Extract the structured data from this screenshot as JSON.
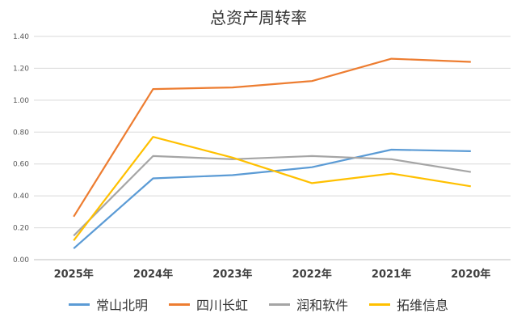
{
  "chart_data": {
    "type": "line",
    "title": "总资产周转率",
    "categories": [
      "2025年",
      "2024年",
      "2023年",
      "2022年",
      "2021年",
      "2020年"
    ],
    "ylim": [
      0,
      1.4
    ],
    "yticks": [
      "0.00",
      "0.20",
      "0.40",
      "0.60",
      "0.80",
      "1.00",
      "1.20",
      "1.40"
    ],
    "grid": true,
    "legend_position": "bottom",
    "series": [
      {
        "name": "常山北明",
        "color": "#5B9BD5",
        "values": [
          0.07,
          0.51,
          0.53,
          0.58,
          0.69,
          0.68
        ]
      },
      {
        "name": "四川长虹",
        "color": "#ED7D31",
        "values": [
          0.27,
          1.07,
          1.08,
          1.12,
          1.26,
          1.24
        ]
      },
      {
        "name": "润和软件",
        "color": "#A5A5A5",
        "values": [
          0.15,
          0.65,
          0.63,
          0.65,
          0.63,
          0.55
        ]
      },
      {
        "name": "拓维信息",
        "color": "#FFC000",
        "values": [
          0.12,
          0.77,
          0.64,
          0.48,
          0.54,
          0.46
        ]
      }
    ]
  }
}
